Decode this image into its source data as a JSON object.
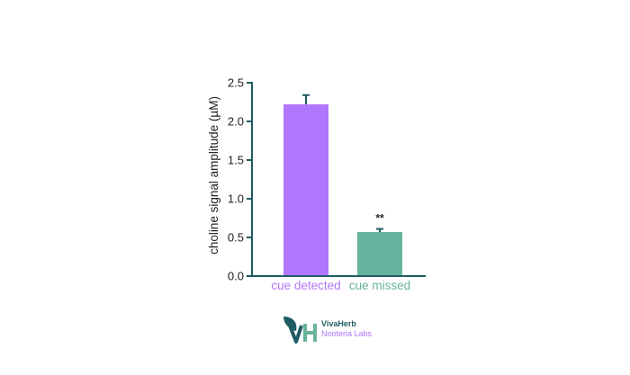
{
  "chart_data": {
    "type": "bar",
    "ylabel": "choline signal amplitude (µM)",
    "ylim": [
      0,
      2.5
    ],
    "yticks": [
      "0.0",
      "0.5",
      "1.0",
      "1.5",
      "2.0",
      "2.5"
    ],
    "categories": [
      "cue detected",
      "cue missed"
    ],
    "values": [
      2.22,
      0.57
    ],
    "errors": [
      0.12,
      0.04
    ],
    "colors": [
      "#b076fc",
      "#67b39d"
    ],
    "annotations": [
      {
        "category": "cue missed",
        "text": "**"
      }
    ],
    "axis_color": "#1f5c63",
    "grid": false
  },
  "logo": {
    "name": "VivaHerb",
    "subtitle": "Nooteria Labs",
    "name_color": "#1f5c63",
    "subtitle_color": "#b076fc",
    "mark_colors": [
      "#1f5c63",
      "#67b39d"
    ]
  }
}
